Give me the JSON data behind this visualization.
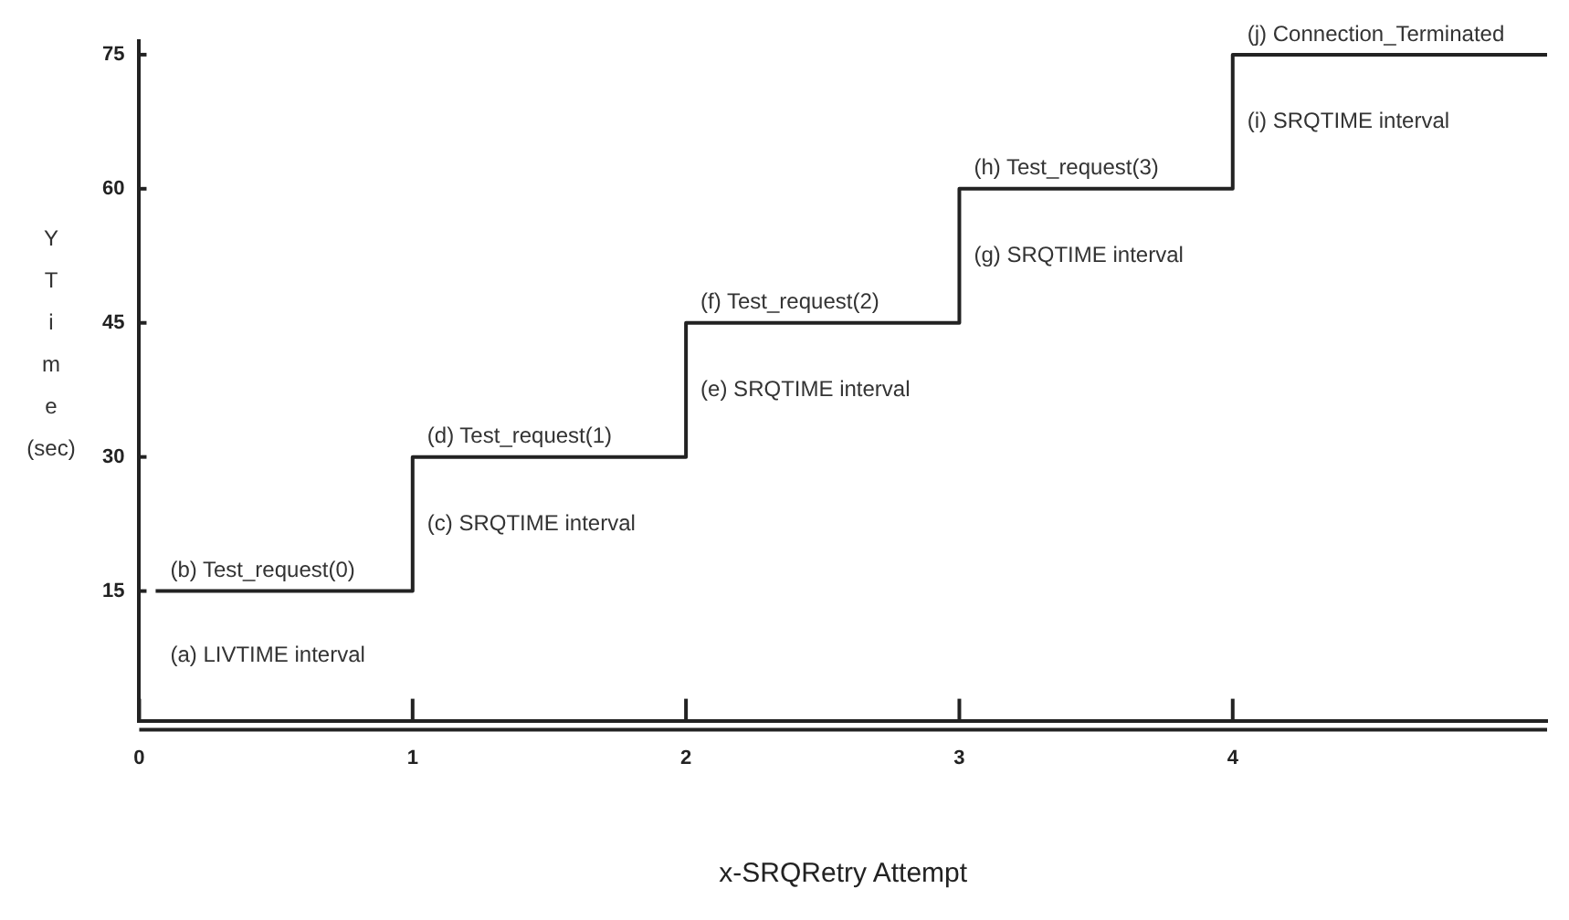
{
  "chart_data": {
    "type": "step",
    "xlabel": "x-SRQRetry Attempt",
    "ylabel": "Y Time (sec)",
    "x": [
      0.06,
      1,
      2,
      3,
      4,
      5.15
    ],
    "series": [
      {
        "color": "#222222",
        "values": [
          15,
          30,
          45,
          60,
          75,
          75
        ]
      }
    ],
    "xlim": [
      0,
      5.15
    ],
    "xticks": [
      0,
      1,
      2,
      3,
      4
    ],
    "ylim": [
      0.5,
      76.5
    ],
    "yticks": [
      15,
      30,
      45,
      60,
      75
    ],
    "grid": false,
    "legend": false,
    "annotations": [
      "(a) LIVTIME interval",
      {
        "text": "(b) Test_request(0)",
        "x": 0.06,
        "y": 15
      },
      "(c) SRQTIME interval",
      {
        "text": "(d) Test_request(1)",
        "x": 1,
        "y": 30
      },
      "(e) SRQTIME interval",
      {
        "text": "(f) Test_request(2)",
        "x": 2,
        "y": 45
      },
      "(g) SRQTIME interval",
      {
        "text": "(h) Test_request(3)",
        "x": 3,
        "y": 60
      },
      "(i) SRQTIME interval",
      {
        "text": "(j) Connection_Terminated",
        "x": 4,
        "y": 75
      }
    ]
  }
}
